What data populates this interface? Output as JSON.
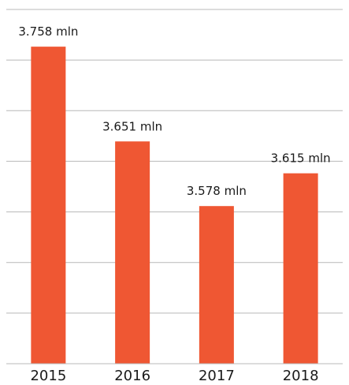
{
  "chart_data": {
    "type": "bar",
    "categories": [
      "2015",
      "2016",
      "2017",
      "2018"
    ],
    "values": [
      3.758,
      3.651,
      3.578,
      3.615
    ],
    "data_labels": [
      "3.758 mln",
      "3.651 mln",
      "3.578 mln",
      "3.615 mln"
    ],
    "ylim": [
      3.4,
      3.8
    ],
    "grid": true,
    "colors": {
      "bar": "#EF5733",
      "grid": "#b8b8b8",
      "text": "#1a1a1a"
    }
  }
}
